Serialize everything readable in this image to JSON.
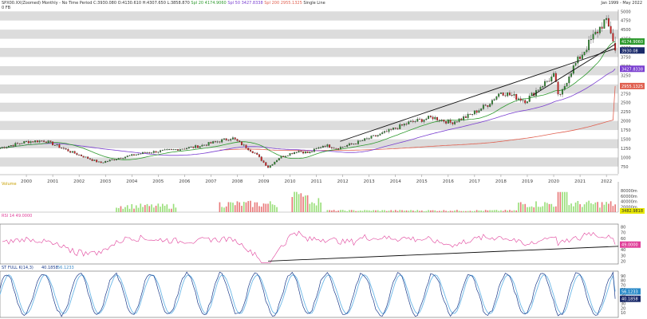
{
  "header": {
    "symbol_line": "SPX00.XX(Zoomed) Monthly - No Time Period",
    "ohlc": "C:3930.080 O:4130.610 H:4307.650 L:3858.870",
    "sma20": "Spl 20 4174.9060",
    "sma50": "Spl 50 3427.8338",
    "sma200": "Spl 200 2955.1325",
    "style": "Single Line",
    "sub": "0 FB",
    "range": "Jan 1999 - May 2022"
  },
  "colors": {
    "candle_up": "#2e8b2e",
    "candle_down": "#d42020",
    "sma20": "#2f9a2f",
    "sma50": "#7a3fd0",
    "sma200": "#e06050",
    "rsi": "#e0409a",
    "stoch_k": "#1a3a8a",
    "stoch_d": "#6bb8e8",
    "band": "#dcdcdc",
    "vol_up": "#9adf7a",
    "vol_down": "#e87a7a"
  },
  "chart_data": [
    {
      "type": "candlestick",
      "title": "SPX00.XX Monthly",
      "x_ticks": [
        "2000",
        "2001",
        "2002",
        "2003",
        "2004",
        "2005",
        "2006",
        "2007",
        "2008",
        "2009",
        "2010",
        "2011",
        "2012",
        "2013",
        "2014",
        "2015",
        "2016",
        "2017",
        "2018",
        "2019",
        "2020",
        "2021",
        "2022"
      ],
      "y_ticks": [
        750,
        1000,
        1250,
        1500,
        1750,
        2000,
        2250,
        2500,
        2750,
        3000,
        3250,
        3500,
        3750,
        4000,
        4250,
        4500,
        4750,
        5000
      ],
      "ylim": [
        550,
        5050
      ],
      "anchors_x": [
        1999.0,
        2000.0,
        2000.7,
        2001.7,
        2002.8,
        2003.5,
        2004.5,
        2005.5,
        2006.5,
        2007.5,
        2007.8,
        2008.7,
        2009.17,
        2009.6,
        2010.3,
        2010.7,
        2011.3,
        2011.8,
        2012.5,
        2013.5,
        2014.5,
        2015.4,
        2016.1,
        2016.8,
        2017.5,
        2018.0,
        2018.95,
        2019.5,
        2020.0,
        2020.22,
        2020.6,
        2021.0,
        2021.5,
        2021.95,
        2022.2,
        2022.33
      ],
      "anchors_close": [
        1260,
        1430,
        1460,
        1150,
        850,
        980,
        1130,
        1200,
        1300,
        1480,
        1540,
        1100,
        730,
        1000,
        1180,
        1120,
        1340,
        1250,
        1400,
        1650,
        1950,
        2100,
        1950,
        2150,
        2450,
        2800,
        2550,
        2950,
        3230,
        2600,
        3300,
        3750,
        4300,
        4750,
        4400,
        3930
      ],
      "last_candle": {
        "open": 4130.61,
        "high": 4307.65,
        "low": 3858.87,
        "close": 3930.08
      },
      "moving_averages": [
        {
          "name": "Spl 20",
          "last": 4174.906
        },
        {
          "name": "Spl 50",
          "last": 3427.8338
        },
        {
          "name": "Spl 200",
          "last": 2955.1325
        }
      ],
      "trendlines": [
        {
          "from": [
            2011.9,
            1440
          ],
          "to": [
            2022.33,
            3980
          ]
        },
        {
          "from": [
            2019.2,
            2700
          ],
          "to": [
            2022.33,
            4100
          ]
        }
      ],
      "value_labels": [
        "4174.9060",
        "3930.08",
        "3427.8338",
        "2955.1325"
      ]
    },
    {
      "type": "bar",
      "title": "Volume",
      "legend": "Volume",
      "y_ticks": [
        "20000m",
        "40000m",
        "60000m",
        "80000m"
      ],
      "last_label": "3482.9818",
      "ylim": [
        0,
        95000
      ]
    },
    {
      "type": "line",
      "title": "RSI",
      "legend": "RSI 14 49.0000",
      "y_ticks": [
        20,
        30,
        40,
        50,
        60,
        70,
        80
      ],
      "ylim": [
        15,
        85
      ],
      "last_value": 49.0,
      "last_label": "49.0000"
    },
    {
      "type": "line",
      "title": "Stochastic",
      "legend_k": "ST FULL K(14,3)",
      "legend_k_value": "40.1858",
      "legend_d_value": "56.1233",
      "y_ticks": [
        10,
        20,
        30,
        40,
        50,
        60,
        70,
        80,
        90
      ],
      "ylim": [
        0,
        100
      ],
      "k_last": 40.1858,
      "d_last": 56.1233
    }
  ]
}
